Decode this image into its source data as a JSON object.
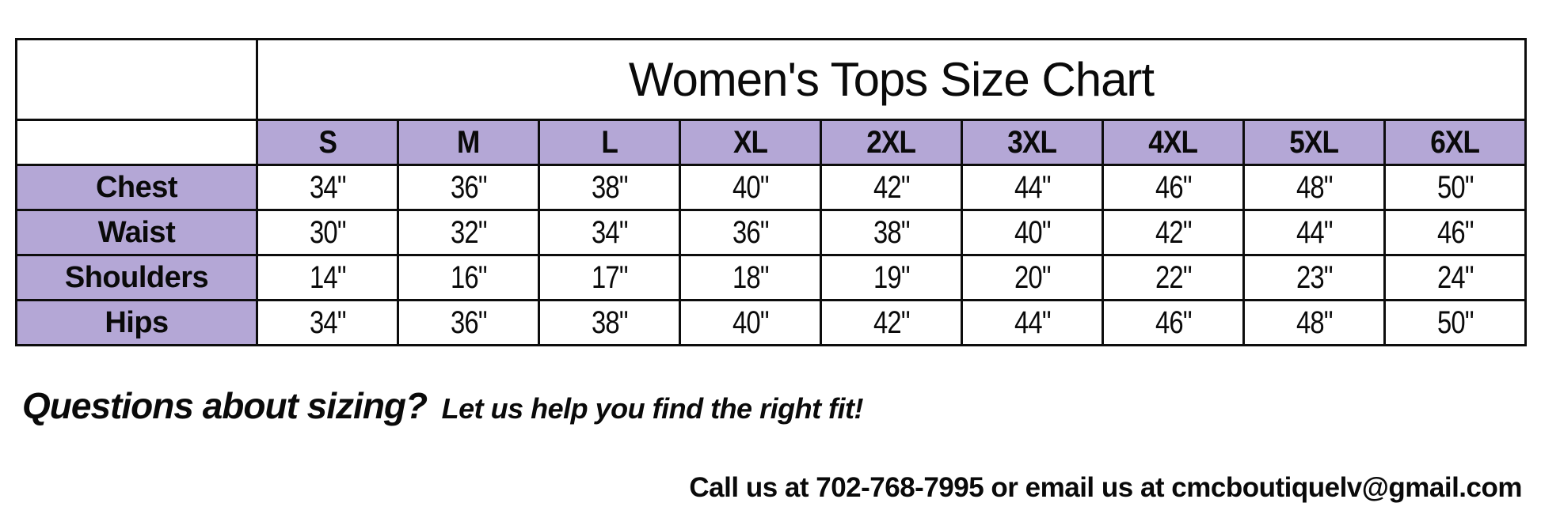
{
  "title": "Women's Tops Size Chart",
  "columns": [
    "S",
    "M",
    "L",
    "XL",
    "2XL",
    "3XL",
    "4XL",
    "5XL",
    "6XL"
  ],
  "rows": [
    {
      "label": "Chest",
      "values": [
        "34\"",
        "36\"",
        "38\"",
        "40\"",
        "42\"",
        "44\"",
        "46\"",
        "48\"",
        "50\""
      ]
    },
    {
      "label": "Waist",
      "values": [
        "30\"",
        "32\"",
        "34\"",
        "36\"",
        "38\"",
        "40\"",
        "42\"",
        "44\"",
        "46\""
      ]
    },
    {
      "label": "Shoulders",
      "values": [
        "14\"",
        "16\"",
        "17\"",
        "18\"",
        "19\"",
        "20\"",
        "22\"",
        "23\"",
        "24\""
      ]
    },
    {
      "label": "Hips",
      "values": [
        "34\"",
        "36\"",
        "38\"",
        "40\"",
        "42\"",
        "44\"",
        "46\"",
        "48\"",
        "50\""
      ]
    }
  ],
  "footer": {
    "question_lead": "Questions about sizing?",
    "question_rest": "Let us help you find the right fit!",
    "contact": "Call us at 702-768-7995 or email us at cmcboutiquelv@gmail.com"
  },
  "colors": {
    "header_purple": "#b4a7d6",
    "border_black": "#0d0d0d",
    "background": "#ffffff",
    "text": "#0a0a0a"
  }
}
